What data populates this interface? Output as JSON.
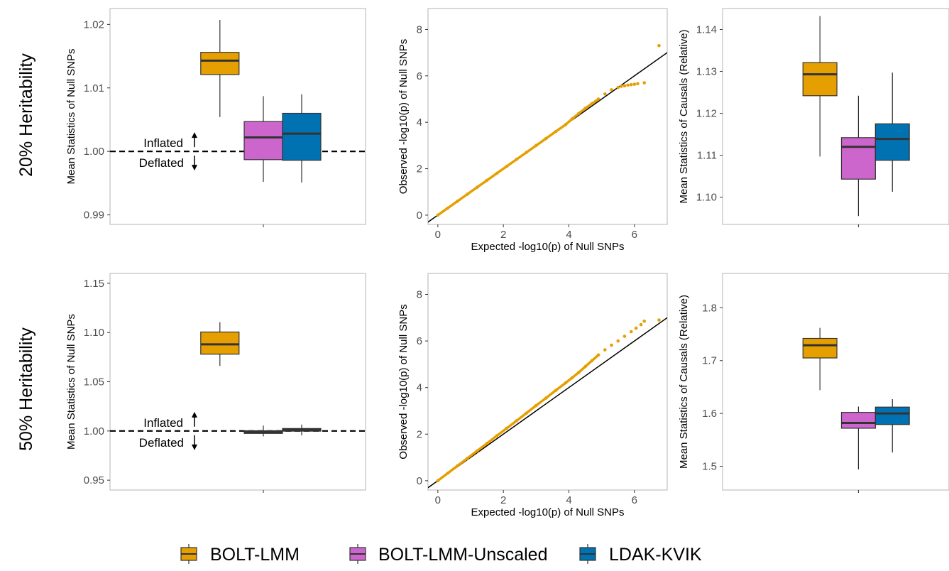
{
  "row_labels": [
    "20% Heritability",
    "50% Heritability"
  ],
  "legend": {
    "items": [
      {
        "label": "BOLT-LMM",
        "color": "#E69F00"
      },
      {
        "label": "BOLT-LMM-Unscaled",
        "color": "#CC66CC"
      },
      {
        "label": "LDAK-KVIK",
        "color": "#0072B2"
      }
    ]
  },
  "annotations": {
    "inflated": "Inflated",
    "deflated": "Deflated"
  },
  "chart_data": [
    {
      "type": "box",
      "row": 0,
      "col": 0,
      "ylabel": "Mean Statistics of Null SNPs",
      "ylim": [
        0.9885,
        1.0225
      ],
      "yticks": [
        "0.99",
        "1.00",
        "1.01",
        "1.02"
      ],
      "reference_line": 1.0,
      "boxes": [
        {
          "series": "BOLT-LMM",
          "min": 1.0054,
          "q1": 1.0121,
          "median": 1.0143,
          "q3": 1.0156,
          "max": 1.0207
        },
        {
          "series": "BOLT-LMM-Unscaled",
          "min": 0.9952,
          "q1": 0.9987,
          "median": 1.0022,
          "q3": 1.0047,
          "max": 1.0087
        },
        {
          "series": "LDAK-KVIK",
          "min": 0.9951,
          "q1": 0.9986,
          "median": 1.0028,
          "q3": 1.006,
          "max": 1.009
        }
      ]
    },
    {
      "type": "scatter",
      "row": 0,
      "col": 1,
      "xlabel": "Expected -log10(p) of Null SNPs",
      "ylabel": "Observed -log10(p) of Null SNPs",
      "xlim": [
        -0.3,
        7.0
      ],
      "ylim": [
        -0.4,
        8.9
      ],
      "xticks": [
        "0",
        "2",
        "4",
        "6"
      ],
      "yticks": [
        "0",
        "2",
        "4",
        "6",
        "8"
      ],
      "reference": "y = x",
      "points": [
        [
          0,
          0
        ],
        [
          0.3,
          0.3
        ],
        [
          0.6,
          0.6
        ],
        [
          0.9,
          0.9
        ],
        [
          1.2,
          1.2
        ],
        [
          1.5,
          1.5
        ],
        [
          1.8,
          1.8
        ],
        [
          2.1,
          2.1
        ],
        [
          2.4,
          2.4
        ],
        [
          2.7,
          2.7
        ],
        [
          3.0,
          3.0
        ],
        [
          3.3,
          3.3
        ],
        [
          3.6,
          3.6
        ],
        [
          3.9,
          3.9
        ],
        [
          4.1,
          4.15
        ],
        [
          4.3,
          4.38
        ],
        [
          4.5,
          4.6
        ],
        [
          4.7,
          4.8
        ],
        [
          4.9,
          5.0
        ],
        [
          5.1,
          5.22
        ],
        [
          5.3,
          5.4
        ],
        [
          5.5,
          5.5
        ],
        [
          5.6,
          5.55
        ],
        [
          5.7,
          5.57
        ],
        [
          5.8,
          5.6
        ],
        [
          5.9,
          5.62
        ],
        [
          6.0,
          5.64
        ],
        [
          6.1,
          5.66
        ],
        [
          6.3,
          5.7
        ],
        [
          6.75,
          7.3
        ]
      ]
    },
    {
      "type": "box",
      "row": 0,
      "col": 2,
      "ylabel": "Mean Statistics of Causals (Relative)",
      "ylim": [
        1.0935,
        1.145
      ],
      "yticks": [
        "1.10",
        "1.11",
        "1.12",
        "1.13",
        "1.14"
      ],
      "boxes": [
        {
          "series": "BOLT-LMM",
          "min": 1.1097,
          "q1": 1.1242,
          "median": 1.1293,
          "q3": 1.1321,
          "max": 1.1432
        },
        {
          "series": "BOLT-LMM-Unscaled",
          "min": 1.0955,
          "q1": 1.1043,
          "median": 1.112,
          "q3": 1.1142,
          "max": 1.1242
        },
        {
          "series": "LDAK-KVIK",
          "min": 1.1013,
          "q1": 1.1088,
          "median": 1.1139,
          "q3": 1.1175,
          "max": 1.1297
        }
      ]
    },
    {
      "type": "box",
      "row": 1,
      "col": 0,
      "ylabel": "Mean Statistics of Null SNPs",
      "ylim": [
        0.94,
        1.16
      ],
      "yticks": [
        "0.95",
        "1.00",
        "1.05",
        "1.10",
        "1.15"
      ],
      "reference_line": 1.0,
      "boxes": [
        {
          "series": "BOLT-LMM",
          "min": 1.066,
          "q1": 1.078,
          "median": 1.088,
          "q3": 1.1005,
          "max": 1.1105
        },
        {
          "series": "BOLT-LMM-Unscaled",
          "min": 0.9945,
          "q1": 0.9975,
          "median": 0.9988,
          "q3": 1.0002,
          "max": 1.0055
        },
        {
          "series": "LDAK-KVIK",
          "min": 0.9955,
          "q1": 0.9998,
          "median": 1.0013,
          "q3": 1.0025,
          "max": 1.0065
        }
      ]
    },
    {
      "type": "scatter",
      "row": 1,
      "col": 1,
      "xlabel": "Expected -log10(p) of Null SNPs",
      "ylabel": "Observed -log10(p) of Null SNPs",
      "xlim": [
        -0.3,
        7.0
      ],
      "ylim": [
        -0.4,
        8.9
      ],
      "xticks": [
        "0",
        "2",
        "4",
        "6"
      ],
      "yticks": [
        "0",
        "2",
        "4",
        "6",
        "8"
      ],
      "reference": "y = x",
      "points": [
        [
          0,
          0
        ],
        [
          0.3,
          0.32
        ],
        [
          0.6,
          0.64
        ],
        [
          0.9,
          0.96
        ],
        [
          1.2,
          1.28
        ],
        [
          1.5,
          1.6
        ],
        [
          1.8,
          1.93
        ],
        [
          2.1,
          2.25
        ],
        [
          2.4,
          2.57
        ],
        [
          2.7,
          2.9
        ],
        [
          3.0,
          3.23
        ],
        [
          3.3,
          3.55
        ],
        [
          3.6,
          3.88
        ],
        [
          3.9,
          4.2
        ],
        [
          4.1,
          4.42
        ],
        [
          4.3,
          4.65
        ],
        [
          4.5,
          4.9
        ],
        [
          4.7,
          5.15
        ],
        [
          4.9,
          5.4
        ],
        [
          5.1,
          5.62
        ],
        [
          5.3,
          5.82
        ],
        [
          5.5,
          6.0
        ],
        [
          5.7,
          6.2
        ],
        [
          5.9,
          6.4
        ],
        [
          6.05,
          6.55
        ],
        [
          6.2,
          6.7
        ],
        [
          6.3,
          6.85
        ],
        [
          6.75,
          6.9
        ]
      ]
    },
    {
      "type": "box",
      "row": 1,
      "col": 2,
      "ylabel": "Mean Statistics of Causals (Relative)",
      "ylim": [
        1.455,
        1.865
      ],
      "yticks": [
        "1.5",
        "1.6",
        "1.7",
        "1.8"
      ],
      "boxes": [
        {
          "series": "BOLT-LMM",
          "min": 1.644,
          "q1": 1.705,
          "median": 1.729,
          "q3": 1.742,
          "max": 1.762
        },
        {
          "series": "BOLT-LMM-Unscaled",
          "min": 1.494,
          "q1": 1.572,
          "median": 1.582,
          "q3": 1.602,
          "max": 1.613
        },
        {
          "series": "LDAK-KVIK",
          "min": 1.526,
          "q1": 1.579,
          "median": 1.6,
          "q3": 1.612,
          "max": 1.627
        }
      ]
    }
  ]
}
